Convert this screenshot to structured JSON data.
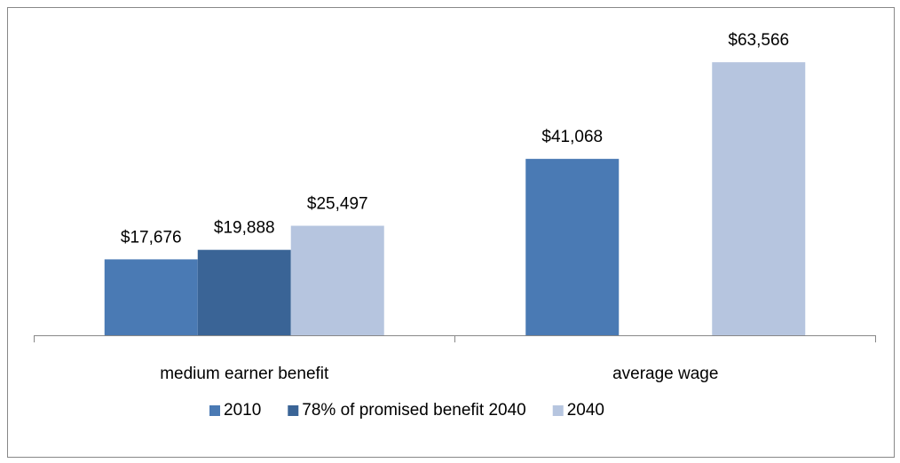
{
  "chart_data": {
    "type": "bar",
    "categories": [
      "medium earner benefit",
      "average wage"
    ],
    "series": [
      {
        "name": "2010",
        "color": "#4a7ab4",
        "values": [
          17676,
          41068
        ],
        "value_labels": [
          "$17,676",
          "$41,068"
        ]
      },
      {
        "name": "78% of promised benefit 2040",
        "color": "#3a6496",
        "values": [
          19888,
          null
        ],
        "value_labels": [
          "$19,888",
          null
        ]
      },
      {
        "name": "2040",
        "color": "#b6c5df",
        "values": [
          25497,
          63566
        ],
        "value_labels": [
          "$25,497",
          "$63,566"
        ]
      }
    ],
    "ylim": [
      0,
      70000
    ],
    "grid": false,
    "legend": "bottom"
  }
}
